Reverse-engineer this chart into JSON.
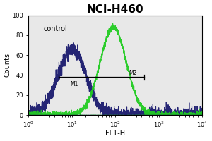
{
  "title": "NCI-H460",
  "xlabel": "FL1-H",
  "ylabel": "Counts",
  "ylim": [
    0,
    100
  ],
  "xlim_log": [
    1.0,
    10000.0
  ],
  "control_label": "control",
  "blue_color": "#1a1a6e",
  "green_color": "#22cc22",
  "background_color": "#e8e8e8",
  "title_fontsize": 11,
  "axis_fontsize": 7,
  "blue_peak_log": 1.0,
  "blue_sigma": 0.32,
  "blue_peak_height": 65,
  "green_peak_log": 1.95,
  "green_sigma": 0.3,
  "green_peak_height": 88,
  "m1_x": 5.0,
  "m2_x": 450.0,
  "m_y": 38,
  "yticks": [
    0,
    20,
    40,
    60,
    80,
    100
  ]
}
